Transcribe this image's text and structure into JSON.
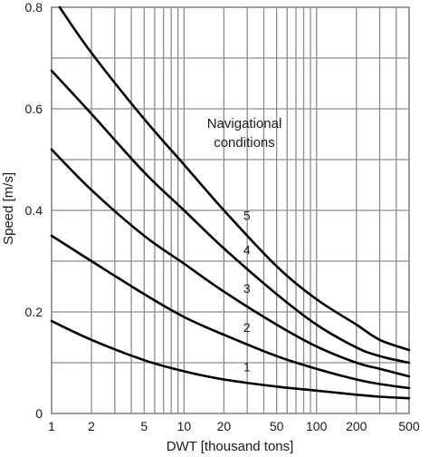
{
  "chart_data": {
    "type": "line",
    "xlabel": "DWT [thousand tons]",
    "ylabel": "Speed [m/s]",
    "xscale": "log",
    "xlim": [
      1,
      500
    ],
    "ylim": [
      0,
      0.8
    ],
    "x_ticks": [
      1,
      2,
      5,
      10,
      20,
      50,
      100,
      200,
      500
    ],
    "x_tick_labels": [
      "1",
      "2",
      "5",
      "10",
      "20",
      "50",
      "100",
      "200",
      "500"
    ],
    "y_ticks": [
      0,
      0.2,
      0.4,
      0.6,
      0.8
    ],
    "y_tick_labels": [
      "0",
      "0.2",
      "0.4",
      "0.6",
      "0.8"
    ],
    "grid": true,
    "annotation": [
      "Navigational",
      "conditions"
    ],
    "series": [
      {
        "name": "1",
        "x": [
          1,
          2,
          5,
          10,
          20,
          50,
          100,
          200,
          300,
          500
        ],
        "y": [
          0.182,
          0.145,
          0.105,
          0.083,
          0.067,
          0.053,
          0.045,
          0.037,
          0.033,
          0.03
        ]
      },
      {
        "name": "2",
        "x": [
          1,
          2,
          5,
          10,
          20,
          50,
          100,
          200,
          300,
          500
        ],
        "y": [
          0.35,
          0.3,
          0.235,
          0.19,
          0.155,
          0.113,
          0.088,
          0.067,
          0.058,
          0.05
        ]
      },
      {
        "name": "3",
        "x": [
          1,
          2,
          5,
          10,
          20,
          50,
          100,
          200,
          300,
          500
        ],
        "y": [
          0.52,
          0.44,
          0.35,
          0.295,
          0.24,
          0.175,
          0.132,
          0.1,
          0.088,
          0.073
        ]
      },
      {
        "name": "4",
        "x": [
          1,
          2,
          5,
          10,
          20,
          50,
          100,
          200,
          300,
          500
        ],
        "y": [
          0.675,
          0.59,
          0.475,
          0.4,
          0.325,
          0.235,
          0.175,
          0.13,
          0.113,
          0.1
        ]
      },
      {
        "name": "5",
        "x": [
          1.15,
          2,
          5,
          10,
          20,
          50,
          100,
          200,
          300,
          500
        ],
        "y": [
          0.8,
          0.71,
          0.58,
          0.49,
          0.4,
          0.29,
          0.225,
          0.175,
          0.145,
          0.125
        ]
      }
    ],
    "colors": {
      "curves": "#000000",
      "grid": "#8c8c8c",
      "frame": "#8c8c8c"
    }
  }
}
